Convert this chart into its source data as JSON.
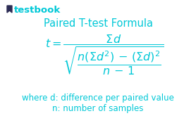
{
  "bg_color": "#ffffff",
  "cyan_color": "#00c8d7",
  "logo_icon_color": "#2c2c54",
  "title": "Paired T-test Formula",
  "title_fontsize": 10.5,
  "note_fontsize": 8.5,
  "logo_text": "testbook",
  "logo_fontsize": 9.5,
  "note_line1": "where d: difference per paired value",
  "note_line2": "n: number of samples"
}
